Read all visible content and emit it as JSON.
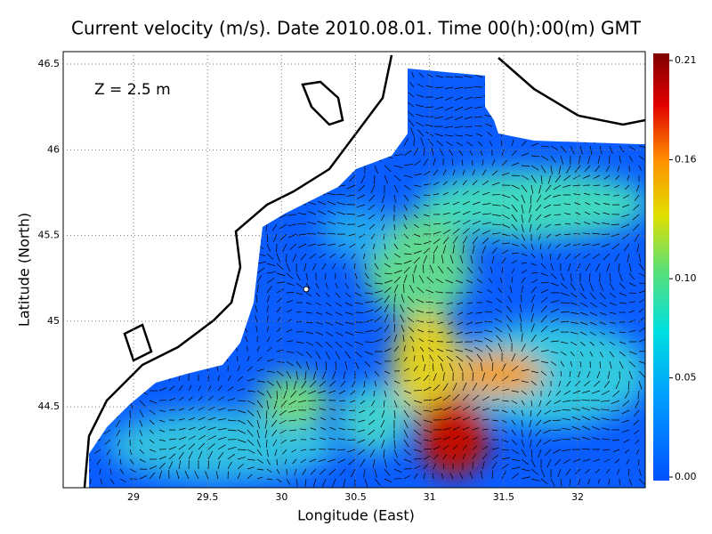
{
  "chart_data": {
    "type": "map",
    "title": "Current velocity (m/s). Date 2010.08.01. Time 00(h):00(m) GMT",
    "annotation": "Z = 2.5 m",
    "x_label": "Longitude (East)",
    "y_label": "Latitude (North)",
    "xlim": [
      28.525,
      32.457
    ],
    "ylim": [
      44.028,
      46.573
    ],
    "xticks": [
      29,
      29.5,
      30,
      30.5,
      31,
      31.5,
      32
    ],
    "yticks": [
      44.5,
      45,
      45.5,
      46,
      46.5
    ],
    "clim": [
      0,
      0.21
    ],
    "cticks": [
      {
        "value": 0,
        "label": "0.00"
      },
      0.05,
      {
        "value": 0.1,
        "label": "0.10"
      },
      0.16,
      0.21
    ]
  }
}
